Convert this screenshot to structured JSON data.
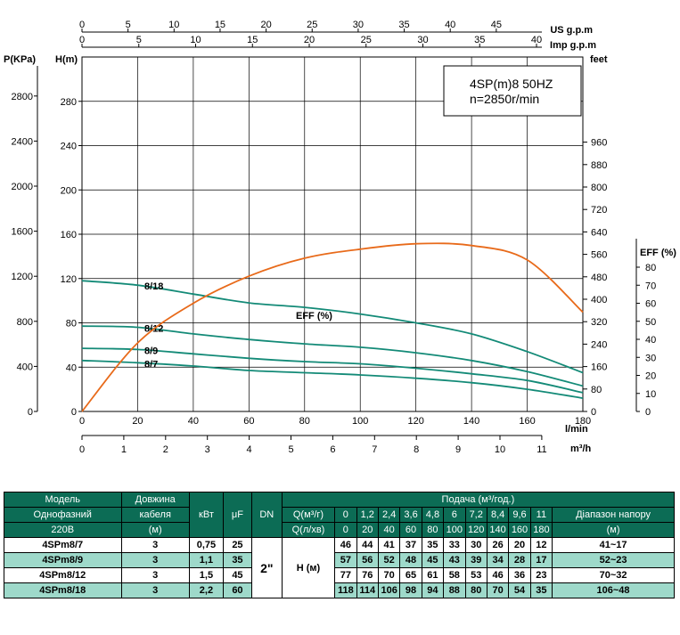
{
  "chart_data": {
    "type": "line",
    "title": "4SP(m)8  50HZ",
    "subtitle": "n=2850r/min",
    "axes": {
      "flow_lmin": {
        "label": "l/min",
        "range": [
          0,
          180
        ],
        "ticks": [
          "0",
          "20",
          "40",
          "60",
          "80",
          "100",
          "120",
          "140",
          "160",
          "180"
        ]
      },
      "flow_m3h": {
        "label": "m³/h",
        "range": [
          0,
          11
        ],
        "ticks": [
          "0",
          "1",
          "2",
          "3",
          "4",
          "5",
          "6",
          "7",
          "8",
          "9",
          "10",
          "11"
        ]
      },
      "flow_us_gpm": {
        "label": "US g.p.m",
        "range": [
          0,
          50
        ],
        "ticks": [
          "0",
          "5",
          "10",
          "15",
          "20",
          "25",
          "30",
          "35",
          "40",
          "45"
        ]
      },
      "flow_imp_gpm": {
        "label": "Imp g.p.m",
        "range": [
          0,
          40
        ],
        "ticks": [
          "0",
          "5",
          "10",
          "15",
          "20",
          "25",
          "30",
          "35",
          "40"
        ]
      },
      "head_m": {
        "label": "H(m)",
        "range": [
          0,
          320
        ],
        "ticks": [
          "0",
          "40",
          "80",
          "120",
          "160",
          "200",
          "240",
          "280"
        ]
      },
      "pressure_kpa": {
        "label": "P(KPa)",
        "ticks": [
          "0",
          "400",
          "800",
          "1200",
          "1600",
          "2000",
          "2400",
          "2800"
        ]
      },
      "head_feet": {
        "label": "feet",
        "ticks": [
          "0",
          "80",
          "160",
          "240",
          "320",
          "400",
          "480",
          "560",
          "640",
          "720",
          "800",
          "880",
          "960"
        ]
      },
      "eff": {
        "label": "EFF (%)",
        "range": [
          0,
          80
        ],
        "ticks": [
          "0",
          "10",
          "20",
          "30",
          "40",
          "50",
          "60",
          "70",
          "80"
        ]
      }
    },
    "series": [
      {
        "name": "8/18",
        "x": [
          0,
          20,
          40,
          60,
          80,
          100,
          120,
          140,
          160,
          180
        ],
        "y": [
          118,
          114,
          106,
          98,
          94,
          88,
          80,
          70,
          54,
          35
        ]
      },
      {
        "name": "8/12",
        "x": [
          0,
          20,
          40,
          60,
          80,
          100,
          120,
          140,
          160,
          180
        ],
        "y": [
          77,
          76,
          70,
          65,
          61,
          58,
          53,
          46,
          36,
          23
        ]
      },
      {
        "name": "8/9",
        "x": [
          0,
          20,
          40,
          60,
          80,
          100,
          120,
          140,
          160,
          180
        ],
        "y": [
          57,
          56,
          52,
          48,
          45,
          43,
          39,
          34,
          28,
          17
        ]
      },
      {
        "name": "8/7",
        "x": [
          0,
          20,
          40,
          60,
          80,
          100,
          120,
          140,
          160,
          180
        ],
        "y": [
          46,
          44,
          41,
          37,
          35,
          33,
          30,
          26,
          20,
          12
        ]
      },
      {
        "name": "EFF (%)",
        "x": [
          0,
          20,
          40,
          60,
          80,
          100,
          120,
          140,
          160,
          180
        ],
        "y": [
          0,
          38,
          60,
          75,
          85,
          90,
          93,
          92,
          84,
          55
        ]
      }
    ]
  },
  "table": {
    "header": {
      "model": "Модель",
      "single_phase": "Однофазний",
      "voltage": "220В",
      "cable1": "Довжина",
      "cable2": "кабеля",
      "cable3": "(м)",
      "kw": "кВт",
      "uf": "μF",
      "dn": "DN",
      "supply": "Подача (м³/год.)",
      "q_m3h_label": "Q(м³/г)",
      "q_lmin_label": "Q(л/хв)",
      "range1": "Діапазон напору",
      "range2": "(м)",
      "q_m3h": [
        "0",
        "1,2",
        "2,4",
        "3,6",
        "4,8",
        "6",
        "7,2",
        "8,4",
        "9,6",
        "11"
      ],
      "q_lmin": [
        "0",
        "20",
        "40",
        "60",
        "80",
        "100",
        "120",
        "140",
        "160",
        "180"
      ]
    },
    "dn_value": "2\"",
    "h_label": "Н (м)",
    "rows": [
      {
        "model": "4SPm8/7",
        "cable": "3",
        "kw": "0,75",
        "uf": "25",
        "heads": [
          "46",
          "44",
          "41",
          "37",
          "35",
          "33",
          "30",
          "26",
          "20",
          "12"
        ],
        "range": "41~17"
      },
      {
        "model": "4SPm8/9",
        "cable": "3",
        "kw": "1,1",
        "uf": "35",
        "heads": [
          "57",
          "56",
          "52",
          "48",
          "45",
          "43",
          "39",
          "34",
          "28",
          "17"
        ],
        "range": "52~23"
      },
      {
        "model": "4SPm8/12",
        "cable": "3",
        "kw": "1,5",
        "uf": "45",
        "heads": [
          "77",
          "76",
          "70",
          "65",
          "61",
          "58",
          "53",
          "46",
          "36",
          "23"
        ],
        "range": "70~32"
      },
      {
        "model": "4SPm8/18",
        "cable": "3",
        "kw": "2,2",
        "uf": "60",
        "heads": [
          "118",
          "114",
          "106",
          "98",
          "94",
          "88",
          "80",
          "70",
          "54",
          "35"
        ],
        "range": "106~48"
      }
    ]
  },
  "colors": {
    "curve": "#138a77",
    "eff": "#e86a1a",
    "header_bg": "#0c6c55",
    "row_alt": "#9ed9ca"
  }
}
